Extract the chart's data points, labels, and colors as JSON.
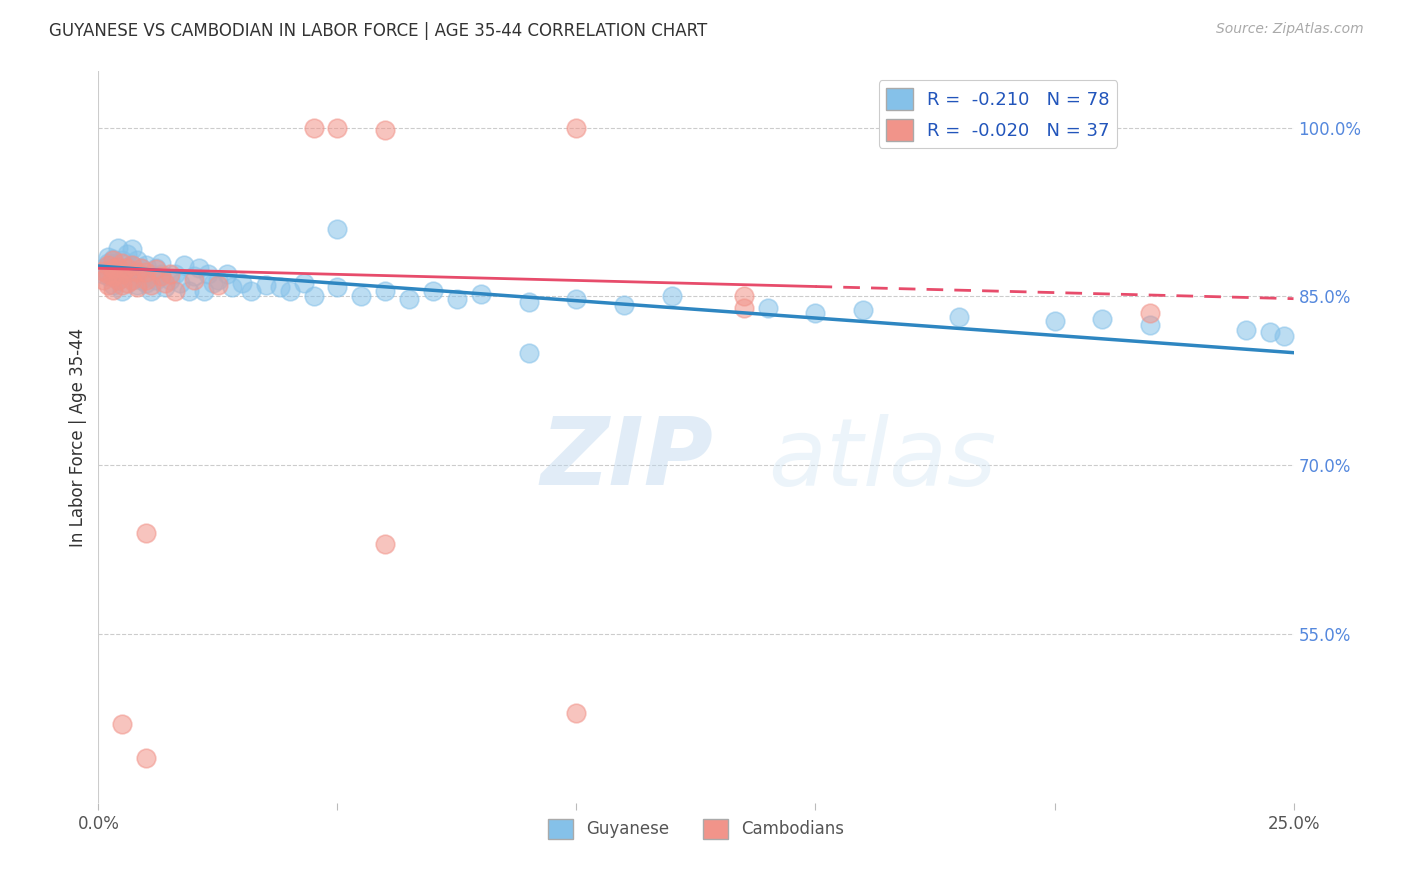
{
  "title": "GUYANESE VS CAMBODIAN IN LABOR FORCE | AGE 35-44 CORRELATION CHART",
  "source": "Source: ZipAtlas.com",
  "ylabel": "In Labor Force | Age 35-44",
  "xlim": [
    0.0,
    0.25
  ],
  "ylim": [
    0.4,
    1.05
  ],
  "xticks": [
    0.0,
    0.05,
    0.1,
    0.15,
    0.2,
    0.25
  ],
  "xtick_labels": [
    "0.0%",
    "",
    "",
    "",
    "",
    "25.0%"
  ],
  "ytick_labels_right": [
    "100.0%",
    "85.0%",
    "70.0%",
    "55.0%"
  ],
  "ytick_vals_right": [
    1.0,
    0.85,
    0.7,
    0.55
  ],
  "guyanese_color": "#85C1E9",
  "cambodian_color": "#F1948A",
  "trend_blue": "#2E86C1",
  "trend_pink": "#E74C6B",
  "background_color": "#ffffff",
  "guyanese_x": [
    0.001,
    0.001,
    0.002,
    0.002,
    0.002,
    0.002,
    0.003,
    0.003,
    0.003,
    0.003,
    0.004,
    0.004,
    0.004,
    0.005,
    0.005,
    0.005,
    0.006,
    0.006,
    0.007,
    0.007,
    0.007,
    0.008,
    0.008,
    0.008,
    0.009,
    0.009,
    0.01,
    0.01,
    0.011,
    0.011,
    0.012,
    0.012,
    0.013,
    0.013,
    0.014,
    0.015,
    0.016,
    0.017,
    0.018,
    0.019,
    0.02,
    0.021,
    0.022,
    0.023,
    0.024,
    0.025,
    0.027,
    0.028,
    0.03,
    0.032,
    0.035,
    0.038,
    0.04,
    0.043,
    0.045,
    0.05,
    0.055,
    0.06,
    0.065,
    0.07,
    0.075,
    0.08,
    0.09,
    0.1,
    0.11,
    0.12,
    0.14,
    0.15,
    0.16,
    0.18,
    0.2,
    0.21,
    0.22,
    0.24,
    0.245,
    0.248,
    0.05,
    0.09
  ],
  "guyanese_y": [
    0.87,
    0.875,
    0.88,
    0.885,
    0.876,
    0.868,
    0.872,
    0.879,
    0.883,
    0.86,
    0.875,
    0.865,
    0.893,
    0.87,
    0.882,
    0.855,
    0.876,
    0.888,
    0.865,
    0.878,
    0.892,
    0.87,
    0.86,
    0.882,
    0.865,
    0.875,
    0.878,
    0.862,
    0.87,
    0.855,
    0.875,
    0.865,
    0.87,
    0.88,
    0.858,
    0.865,
    0.87,
    0.862,
    0.878,
    0.855,
    0.868,
    0.875,
    0.855,
    0.87,
    0.862,
    0.865,
    0.87,
    0.858,
    0.862,
    0.855,
    0.86,
    0.858,
    0.855,
    0.862,
    0.85,
    0.858,
    0.85,
    0.855,
    0.848,
    0.855,
    0.848,
    0.852,
    0.845,
    0.848,
    0.842,
    0.85,
    0.84,
    0.835,
    0.838,
    0.832,
    0.828,
    0.83,
    0.825,
    0.82,
    0.818,
    0.815,
    0.91,
    0.8
  ],
  "cambodian_x": [
    0.001,
    0.001,
    0.002,
    0.002,
    0.002,
    0.003,
    0.003,
    0.003,
    0.003,
    0.004,
    0.004,
    0.005,
    0.005,
    0.005,
    0.006,
    0.006,
    0.007,
    0.007,
    0.008,
    0.008,
    0.009,
    0.01,
    0.01,
    0.011,
    0.012,
    0.013,
    0.014,
    0.015,
    0.016,
    0.02,
    0.025,
    0.06,
    0.1,
    0.135,
    0.135,
    0.22
  ],
  "cambodian_y": [
    0.873,
    0.865,
    0.878,
    0.87,
    0.86,
    0.882,
    0.875,
    0.868,
    0.856,
    0.876,
    0.865,
    0.88,
    0.87,
    0.86,
    0.875,
    0.862,
    0.878,
    0.865,
    0.872,
    0.858,
    0.875,
    0.865,
    0.872,
    0.86,
    0.874,
    0.868,
    0.862,
    0.87,
    0.855,
    0.865,
    0.86,
    0.63,
    0.48,
    0.85,
    0.84,
    0.835
  ],
  "cambodian_outliers_x": [
    0.045,
    0.05,
    0.06,
    0.1,
    0.01,
    0.005,
    0.01
  ],
  "cambodian_outliers_y": [
    1.0,
    1.0,
    0.998,
    1.0,
    0.64,
    0.47,
    0.44
  ],
  "trend_g_x0": 0.0,
  "trend_g_y0": 0.877,
  "trend_g_x1": 0.25,
  "trend_g_y1": 0.8,
  "trend_c_x0": 0.0,
  "trend_c_y0": 0.875,
  "trend_c_x1": 0.25,
  "trend_c_y1": 0.848
}
